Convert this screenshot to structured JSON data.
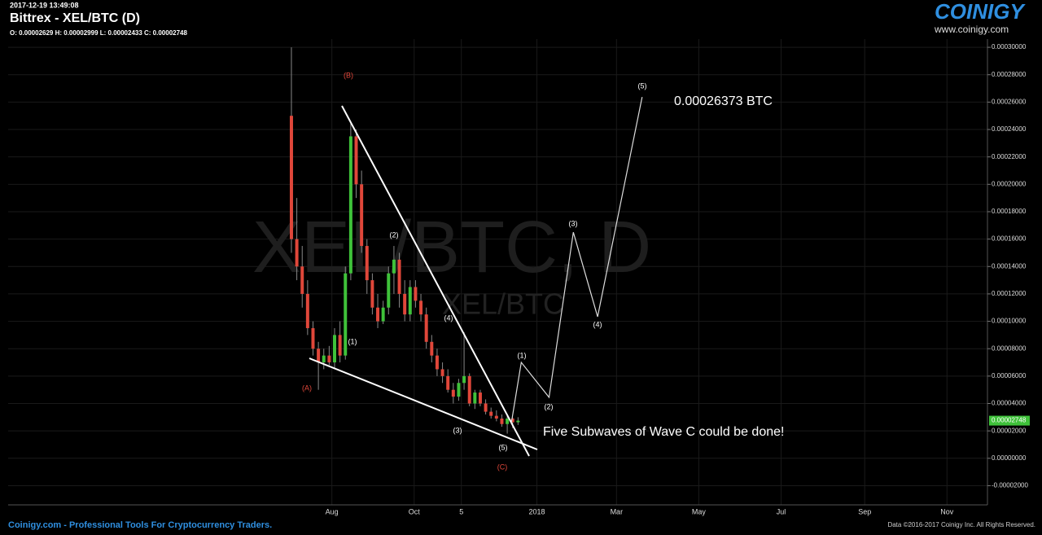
{
  "chart_data": {
    "type": "candlestick",
    "timestamp": "2017-12-19 13:49:08",
    "title": "Bittrex - XEL/BTC (D)",
    "ohlc_text": "O: 0.00002629 H: 0.00002999 L: 0.00002433 C: 0.00002748",
    "watermark": "XEL/BTC, D",
    "watermark_small": "XEL/BTC",
    "brand": "COINIGY",
    "brand_url": "www.coinigy.com",
    "footer_left": "Coinigy.com - Professional Tools For Cryptocurrency Traders.",
    "footer_right": "Data ©2016-2017 Coinigy Inc. All Rights Reserved.",
    "up_color": "#3fc23a",
    "down_color": "#e0473a",
    "grid": true,
    "xlim": [
      0,
      726
    ],
    "ylim": [
      -3.4e-05,
      0.000306
    ],
    "xticks": [
      {
        "value": 240,
        "label": "Aug"
      },
      {
        "value": 301,
        "label": "Oct"
      },
      {
        "value": 336,
        "label": "5"
      },
      {
        "value": 392,
        "label": "2018"
      },
      {
        "value": 451,
        "label": "Mar"
      },
      {
        "value": 512,
        "label": "May"
      },
      {
        "value": 573,
        "label": "Jul"
      },
      {
        "value": 635,
        "label": "Sep"
      },
      {
        "value": 696,
        "label": "Nov"
      }
    ],
    "yticks": [
      {
        "value": 0.0003,
        "label": "0.00030000"
      },
      {
        "value": 0.00028,
        "label": "0.00028000"
      },
      {
        "value": 0.00026,
        "label": "0.00026000"
      },
      {
        "value": 0.00024,
        "label": "0.00024000"
      },
      {
        "value": 0.00022,
        "label": "0.00022000"
      },
      {
        "value": 0.0002,
        "label": "0.00020000"
      },
      {
        "value": 0.00018,
        "label": "0.00018000"
      },
      {
        "value": 0.00016,
        "label": "0.00016000"
      },
      {
        "value": 0.00014,
        "label": "0.00014000"
      },
      {
        "value": 0.00012,
        "label": "0.00012000"
      },
      {
        "value": 0.0001,
        "label": "0.00010000"
      },
      {
        "value": 8e-05,
        "label": "0.00008000"
      },
      {
        "value": 6e-05,
        "label": "0.00006000"
      },
      {
        "value": 4e-05,
        "label": "0.00004000"
      },
      {
        "value": 2e-05,
        "label": "0.00002000"
      },
      {
        "value": 0,
        "label": "0.00000000"
      },
      {
        "value": -2e-05,
        "label": "-0.00002000"
      }
    ],
    "last_price": {
      "value": 2.748e-05,
      "label": "0.00002748"
    },
    "series": {
      "x": [
        210,
        214,
        218,
        222,
        226,
        230,
        234,
        238,
        242,
        246,
        250,
        254,
        258,
        262,
        266,
        270,
        274,
        278,
        282,
        286,
        290,
        294,
        298,
        302,
        306,
        310,
        314,
        318,
        322,
        326,
        330,
        334,
        338,
        342,
        346,
        350,
        354,
        358,
        362,
        366,
        370,
        374,
        378
      ],
      "open": [
        0.00025,
        0.00016,
        0.00014,
        0.00012,
        9.5e-05,
        8e-05,
        7e-05,
        7.5e-05,
        7e-05,
        9e-05,
        7.5e-05,
        0.000135,
        0.000235,
        0.0002,
        0.000155,
        0.00013,
        0.00011,
        0.0001,
        0.00011,
        0.000135,
        0.000145,
        0.00012,
        0.000105,
        0.000125,
        0.000115,
        0.000105,
        8.5e-05,
        7.5e-05,
        6.5e-05,
        6e-05,
        5e-05,
        4.5e-05,
        5.5e-05,
        6e-05,
        4e-05,
        4.8e-05,
        4e-05,
        3.4e-05,
        3.1e-05,
        2.9e-05,
        2.5e-05,
        2.9e-05,
        2.629e-05
      ],
      "high": [
        0.0003,
        0.00019,
        0.000155,
        0.00013,
        0.0001,
        8.5e-05,
        8e-05,
        8.2e-05,
        9.5e-05,
        0.0001,
        0.00014,
        0.000245,
        0.00024,
        0.00021,
        0.00016,
        0.000135,
        0.00012,
        0.000115,
        0.00014,
        0.000155,
        0.00015,
        0.00013,
        0.00013,
        0.00013,
        0.00012,
        0.00011,
        9e-05,
        8e-05,
        7e-05,
        6.5e-05,
        5.5e-05,
        5.8e-05,
        9.2e-05,
        6.2e-05,
        5e-05,
        5e-05,
        4.3e-05,
        3.7e-05,
        3.5e-05,
        3.2e-05,
        3.1e-05,
        3e-05,
        2.999e-05
      ],
      "low": [
        0.00015,
        0.00013,
        0.00011,
        9e-05,
        7.5e-05,
        5e-05,
        6.5e-05,
        6.8e-05,
        6.5e-05,
        7e-05,
        7.2e-05,
        0.00013,
        0.00019,
        0.00015,
        0.00012,
        0.000105,
        9.5e-05,
        9.8e-05,
        0.000105,
        0.00012,
        0.00011,
        0.0001,
        0.0001,
        0.00011,
        0.0001,
        8e-05,
        7e-05,
        6e-05,
        5.5e-05,
        4.8e-05,
        4e-05,
        4.2e-05,
        5e-05,
        3.8e-05,
        3.6e-05,
        3.8e-05,
        3.2e-05,
        2.9e-05,
        2.7e-05,
        2.3e-05,
        1.8e-05,
        2.2e-05,
        2.433e-05
      ],
      "close": [
        0.00016,
        0.00014,
        0.00012,
        9.5e-05,
        8e-05,
        7e-05,
        7.5e-05,
        7e-05,
        9e-05,
        7.5e-05,
        0.000135,
        0.000235,
        0.0002,
        0.000155,
        0.00013,
        0.00011,
        0.0001,
        0.00011,
        0.000135,
        0.000145,
        0.00012,
        0.000105,
        0.000125,
        0.000115,
        0.000105,
        8.5e-05,
        7.5e-05,
        6.5e-05,
        6e-05,
        5e-05,
        4.5e-05,
        5.5e-05,
        6e-05,
        4e-05,
        4.8e-05,
        4e-05,
        3.4e-05,
        3.1e-05,
        2.9e-05,
        2.5e-05,
        2.9e-05,
        2.629e-05,
        2.748e-05
      ]
    },
    "projection": {
      "x": [
        373,
        380.4,
        401,
        419,
        437,
        470
      ],
      "values": [
        2.55e-05,
        7e-05,
        4.45e-05,
        0.000165,
        0.0001033,
        0.00026373
      ]
    },
    "target_text": "0.00026373 BTC",
    "note_text": "Five Subwaves of Wave C could be done!",
    "wave_labels": [
      "(A)",
      "(B)",
      "(C)",
      "(1)",
      "(2)",
      "(3)",
      "(4)",
      "(5)",
      "(1)",
      "(2)",
      "(3)",
      "(4)",
      "(5)"
    ]
  }
}
